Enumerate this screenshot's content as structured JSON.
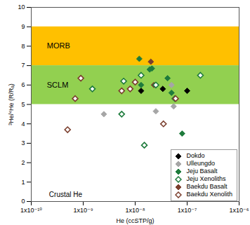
{
  "chart_data": {
    "type": "scatter",
    "xlabel": "He (ccSTP/g)",
    "ylabel": "³He/⁴He (R/Rₐ)",
    "log": "x",
    "legend": "bottom-right",
    "xlim": [
      1e-10,
      1e-06
    ],
    "xticks": [
      {
        "value": 1e-10,
        "label": "1x10⁻¹⁰"
      },
      {
        "value": 1e-09,
        "label": "1x10⁻⁹"
      },
      {
        "value": 1e-08,
        "label": "1x10⁻⁸"
      },
      {
        "value": 1e-07,
        "label": "1x10⁻⁷"
      },
      {
        "value": 1e-06,
        "label": "1x10⁻⁶"
      }
    ],
    "ylim": [
      0,
      10
    ],
    "yticks": [
      0,
      1,
      2,
      3,
      4,
      5,
      6,
      7,
      8,
      9,
      10
    ],
    "bands": [
      {
        "text": "MORB",
        "y_range": [
          7,
          9
        ],
        "color": "#ffc000",
        "text_x": 2e-10
      },
      {
        "text": "SCLM",
        "y_range": [
          5,
          7
        ],
        "color": "#92d050",
        "text_x": 2e-10
      }
    ],
    "annotations": [
      {
        "text": "Crustal He",
        "x": 2.2e-10,
        "y": 0.35
      }
    ],
    "series": [
      {
        "name": "Dokdo",
        "color": "#000000",
        "marker": "diamond",
        "x": [
          1.3e-08,
          3.4e-08,
          1e-07
        ],
        "values": [
          5.7,
          5.8,
          5.7
        ]
      },
      {
        "name": "Ulleungdo",
        "color": "#a6a6a6",
        "marker": "diamond",
        "x": [
          2.5e-09,
          2.5e-08,
          5.5e-08,
          5e-08
        ],
        "values": [
          4.5,
          4.65,
          4.9,
          6.0
        ]
      },
      {
        "name": "Jeju Basalt",
        "color": "#1e7b3c",
        "marker": "diamond",
        "x": [
          1.2e-08,
          1.9e-08,
          2.1e-08,
          4.2e-08,
          5e-08,
          8e-08,
          1.3e-08
        ],
        "values": [
          7.35,
          6.8,
          6.85,
          6.35,
          5.6,
          3.5,
          6.0
        ]
      },
      {
        "name": "Jeju Xenoliths",
        "color": "#1e7b3c",
        "marker": "open-diamond",
        "x": [
          1.5e-09,
          5.5e-09,
          6e-09,
          1.3e-08,
          1.5e-08,
          1.8e-07,
          5.8e-08,
          2.5e-08
        ],
        "values": [
          5.8,
          4.5,
          6.2,
          6.5,
          2.9,
          6.5,
          5.3,
          6.0
        ]
      },
      {
        "name": "Baekdu Basalt",
        "color": "#7b3f2e",
        "marker": "diamond",
        "x": [
          2e-08,
          2.3e-08
        ],
        "values": [
          7.2,
          6.0
        ]
      },
      {
        "name": "Baekdu Xenolith",
        "color": "#7b3f2e",
        "marker": "open-diamond",
        "x": [
          5e-10,
          7e-10,
          9e-10,
          5.5e-09,
          8e-09,
          1e-08,
          3.5e-08,
          6e-08
        ],
        "values": [
          3.7,
          5.3,
          6.35,
          5.7,
          5.8,
          6.15,
          4.0,
          5.3
        ]
      }
    ]
  }
}
